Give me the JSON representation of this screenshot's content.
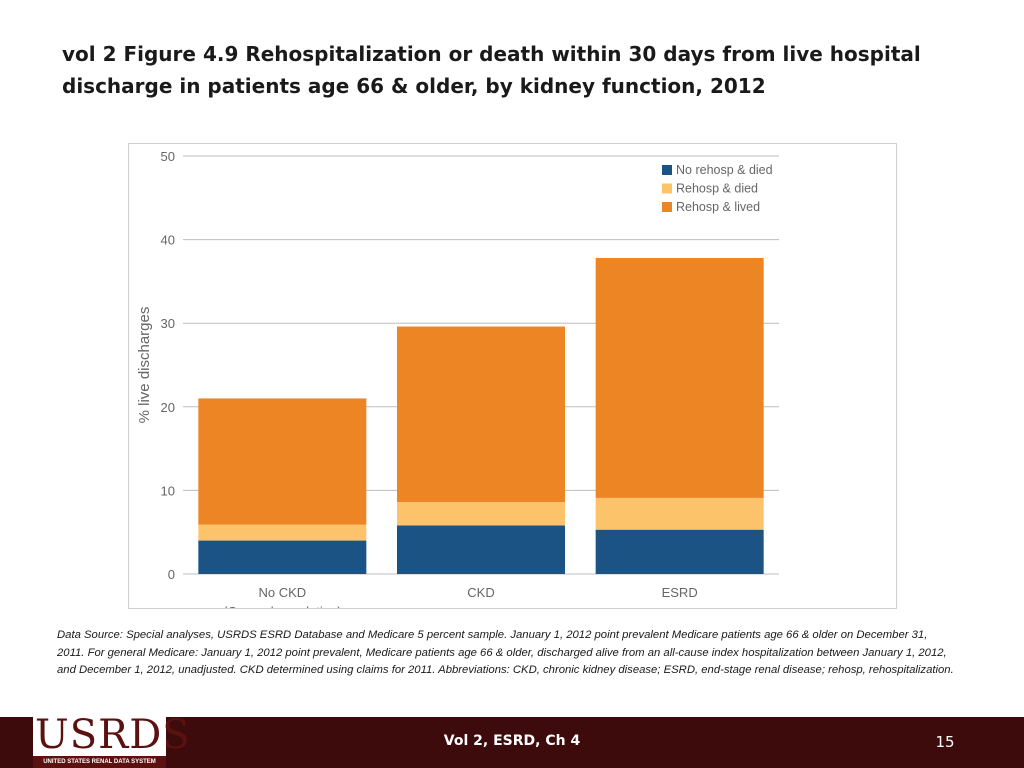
{
  "title": "vol 2 Figure 4.9 Rehospitalization or death within 30 days from live hospital discharge in patients age 66 & older, by kidney function, 2012",
  "chart_data": {
    "type": "bar",
    "stacked": true,
    "title": "vol 2 Figure 4.9 Rehospitalization or death within 30 days from live hospital discharge in patients age 66 & older, by kidney function, 2012",
    "xlabel": "",
    "ylabel": "% live discharges",
    "ylim": [
      0,
      50
    ],
    "yticks": [
      0,
      10,
      20,
      30,
      40,
      50
    ],
    "grid": true,
    "legend_position": "top-right",
    "categories": [
      "No CKD",
      "CKD",
      "ESRD"
    ],
    "category_sublabels": [
      "(General population)",
      "",
      ""
    ],
    "series": [
      {
        "name": "No rehosp & died",
        "color": "#1b5384",
        "values": [
          4.0,
          5.8,
          5.3
        ]
      },
      {
        "name": "Rehosp & died",
        "color": "#fdc36b",
        "values": [
          1.9,
          2.8,
          3.8
        ]
      },
      {
        "name": "Rehosp & lived",
        "color": "#ee8525",
        "values": [
          15.1,
          21.0,
          28.7
        ]
      }
    ]
  },
  "source_note": "Data Source: Special analyses, USRDS ESRD Database and Medicare 5 percent sample. January 1, 2012 point prevalent Medicare patients age 66 & older on December 31, 2011. For general Medicare: January 1, 2012 point prevalent, Medicare patients age 66 & older, discharged alive from an all-cause index hospitalization between January 1, 2012, and December 1, 2012, unadjusted. CKD determined using claims for 2011. Abbreviations: CKD, chronic kidney disease; ESRD, end-stage renal disease; rehosp, rehospitalization.",
  "footer": {
    "logo": "USRDS",
    "logo_subtitle": "UNITED STATES RENAL DATA SYSTEM",
    "center": "Vol 2, ESRD, Ch 4",
    "page": "15"
  },
  "colors": {
    "footer_bg": "#3d0b0b",
    "logo_brand": "#5c1111",
    "grid": "#bdbdbd"
  }
}
